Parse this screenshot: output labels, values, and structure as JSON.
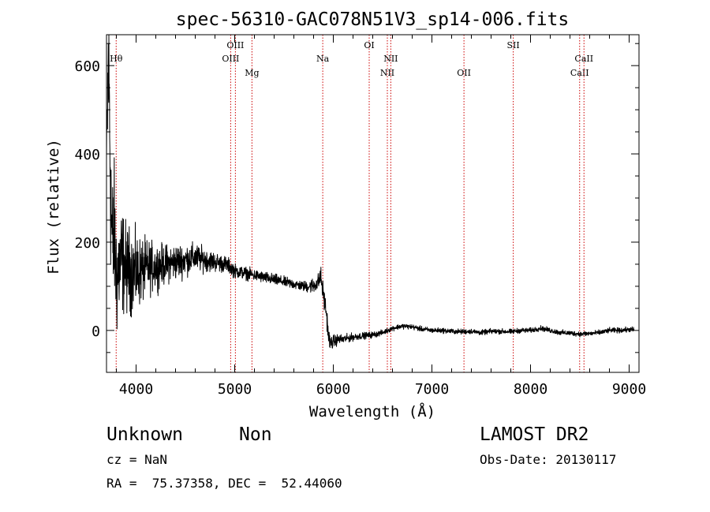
{
  "chart_data": {
    "type": "line",
    "title": "spec-56310-GAC078N51V3_sp14-006.fits",
    "xlabel": "Wavelength (Å)",
    "ylabel": "Flux (relative)",
    "xlim": [
      3700,
      9100
    ],
    "ylim": [
      -95,
      670
    ],
    "x_ticks": [
      4000,
      5000,
      6000,
      7000,
      8000,
      9000
    ],
    "x_tick_labels": [
      "4000",
      "5000",
      "6000",
      "7000",
      "8000",
      "9000"
    ],
    "y_ticks": [
      0,
      200,
      400,
      600
    ],
    "y_tick_labels": [
      "0",
      "200",
      "400",
      "600"
    ],
    "grid": false,
    "legend": "none",
    "line_color": "#000000",
    "marker_color": "#cc0000",
    "spectrum_anchors": {
      "x": [
        3700,
        3720,
        3735,
        3745,
        3760,
        3780,
        3800,
        3850,
        3900,
        4000,
        4100,
        4200,
        4300,
        4400,
        4500,
        4600,
        4700,
        4800,
        4900,
        4950,
        5000,
        5100,
        5200,
        5300,
        5400,
        5500,
        5600,
        5700,
        5750,
        5800,
        5850,
        5870,
        5900,
        5930,
        5950,
        5970,
        6000,
        6050,
        6100,
        6200,
        6300,
        6400,
        6500,
        6600,
        6700,
        6800,
        6900,
        7000,
        7100,
        7200,
        7300,
        7400,
        7500,
        7600,
        7700,
        7800,
        7900,
        8000,
        8100,
        8200,
        8300,
        8400,
        8500,
        8600,
        8700,
        8800,
        8900,
        9000,
        9050
      ],
      "y": [
        380,
        620,
        430,
        300,
        180,
        220,
        120,
        160,
        140,
        130,
        140,
        145,
        150,
        155,
        160,
        165,
        160,
        155,
        150,
        145,
        135,
        130,
        125,
        120,
        115,
        110,
        105,
        100,
        100,
        102,
        110,
        125,
        80,
        40,
        -10,
        -30,
        -25,
        -20,
        -20,
        -15,
        -12,
        -10,
        -5,
        5,
        10,
        8,
        3,
        0,
        0,
        -2,
        -3,
        -2,
        -5,
        -2,
        -2,
        -3,
        0,
        0,
        5,
        0,
        -5,
        -6,
        -8,
        -7,
        -5,
        0,
        0,
        2,
        2
      ],
      "noise": [
        40,
        190,
        160,
        140,
        130,
        110,
        100,
        85,
        70,
        60,
        45,
        35,
        30,
        28,
        25,
        22,
        18,
        15,
        13,
        12,
        11,
        10,
        9,
        9,
        9,
        8,
        8,
        8,
        10,
        12,
        14,
        16,
        18,
        16,
        14,
        12,
        10,
        8,
        7,
        6,
        5,
        5,
        4,
        4,
        4,
        4,
        4,
        4,
        4,
        4,
        4,
        4,
        4,
        4,
        4,
        4,
        4,
        4,
        4,
        4,
        4,
        4,
        4,
        4,
        4,
        4,
        4,
        4,
        4
      ]
    },
    "lines": [
      {
        "label": "Hθ",
        "x": 3798,
        "row": 0
      },
      {
        "label": "OIII",
        "x": 4959,
        "row": 0
      },
      {
        "label": "OIII",
        "x": 5007,
        "row": -1
      },
      {
        "label": "Mg",
        "x": 5175,
        "row": 1
      },
      {
        "label": "Na",
        "x": 5893,
        "row": 0
      },
      {
        "label": "OI",
        "x": 6364,
        "row": -1
      },
      {
        "label": "NII",
        "x": 6548,
        "row": 1
      },
      {
        "label": "NII",
        "x": 6583,
        "row": 0
      },
      {
        "label": "OII",
        "x": 7325,
        "row": 1
      },
      {
        "label": "SII",
        "x": 7825,
        "row": -1
      },
      {
        "label": "CaII",
        "x": 8498,
        "row": 1
      },
      {
        "label": "CaII",
        "x": 8542,
        "row": 0
      }
    ]
  },
  "info": {
    "object_type": "Unknown",
    "subclass": "Non",
    "survey": "LAMOST DR2",
    "cz": "cz = NaN",
    "obs_date": "Obs-Date: 20130117",
    "coords": "RA =  75.37358, DEC =  52.44060"
  }
}
